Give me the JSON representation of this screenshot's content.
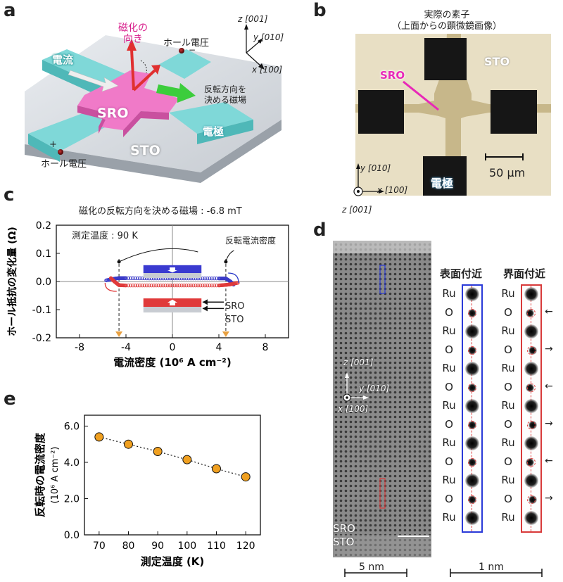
{
  "panels": {
    "a": "a",
    "b": "b",
    "c": "c",
    "d": "d",
    "e": "e"
  },
  "a": {
    "magnetization": [
      "磁化の",
      "向き"
    ],
    "hall_voltage_top": "ホール電圧",
    "hall_voltage_bottom": "ホール電圧",
    "current": "電流",
    "field": [
      "反転方向を",
      "決める磁場"
    ],
    "sro": "SRO",
    "sto": "STO",
    "electrode": "電極",
    "plus": "+",
    "minus": "−",
    "axes": {
      "z": "z [001]",
      "y": "y [010]",
      "x": "x [100]"
    }
  },
  "b": {
    "title": [
      "実際の素子",
      "（上面からの顕微鏡画像）"
    ],
    "sro": "SRO",
    "sto": "STO",
    "electrode": "電極",
    "scale": "50 μm",
    "axes": {
      "y": "y [010]",
      "x": "x [100]",
      "z": "z [001]"
    }
  },
  "c": {
    "title": "磁化の反転方向を決める磁場 : -6.8 mT",
    "measure_temp": "測定温度 : 90 K",
    "switch_density": "反転電流密度",
    "sro": "SRO",
    "sto": "STO"
  },
  "d": {
    "surface": "表面付近",
    "interface": "界面付近",
    "sro": "SRO",
    "sto": "STO",
    "scale_left": "5 nm",
    "scale_right": "1 nm",
    "axes": {
      "z": "z [001]",
      "y": "y [010]",
      "x": "x [100]"
    },
    "atoms": [
      "Ru",
      "O",
      "Ru",
      "O",
      "Ru",
      "O",
      "Ru",
      "O",
      "Ru",
      "O",
      "Ru",
      "O",
      "Ru"
    ],
    "interface_shifts": [
      "left",
      "right",
      "left",
      "right",
      "left",
      "right"
    ]
  },
  "chart_data": [
    {
      "type": "scatter",
      "panel": "c",
      "xlabel": "電流密度 (10⁶ A cm⁻²)",
      "ylabel": "ホール抵抗の変化量 (Ω)",
      "xlim": [
        -10,
        10
      ],
      "ylim": [
        -0.2,
        0.2
      ],
      "xticks": [
        "-8",
        "-4",
        "0",
        "4",
        "8"
      ],
      "yticks": [
        "0.2",
        "0.1",
        "0.0",
        "-0.1",
        "-0.2"
      ],
      "series": [
        {
          "color": "#3a3ac8",
          "x": [
            -5.7,
            -5,
            -4.6,
            -4,
            -2,
            0,
            2,
            4,
            4.6,
            5.0,
            5.3
          ],
          "y": [
            0.004,
            0.01,
            0.012,
            0.012,
            0.011,
            0.011,
            0.011,
            0.011,
            0.011,
            0.0,
            -0.012
          ]
        },
        {
          "color": "#e03a3a",
          "x": [
            -5.3,
            -5.0,
            -4.6,
            -4,
            -2,
            0,
            2,
            4,
            4.6,
            5,
            5.7
          ],
          "y": [
            0.012,
            0.0,
            -0.013,
            -0.014,
            -0.014,
            -0.014,
            -0.014,
            -0.014,
            -0.012,
            -0.01,
            -0.004
          ]
        }
      ],
      "switch_x": [
        -4.6,
        4.6
      ]
    },
    {
      "type": "line",
      "panel": "e",
      "xlabel": "測定温度 (K)",
      "ylabel": [
        "反転時の電流密度",
        "(10⁶ A cm⁻²)"
      ],
      "x": [
        70,
        80,
        90,
        100,
        110,
        120
      ],
      "values": [
        5.4,
        5.0,
        4.6,
        4.15,
        3.65,
        3.2
      ],
      "xlim": [
        65,
        125
      ],
      "ylim": [
        0,
        6.6
      ],
      "xticks": [
        "70",
        "80",
        "90",
        "100",
        "110",
        "120"
      ],
      "yticks": [
        "6.0",
        "4.0",
        "2.0",
        "0.0"
      ],
      "marker_color": "#f0a020"
    }
  ]
}
